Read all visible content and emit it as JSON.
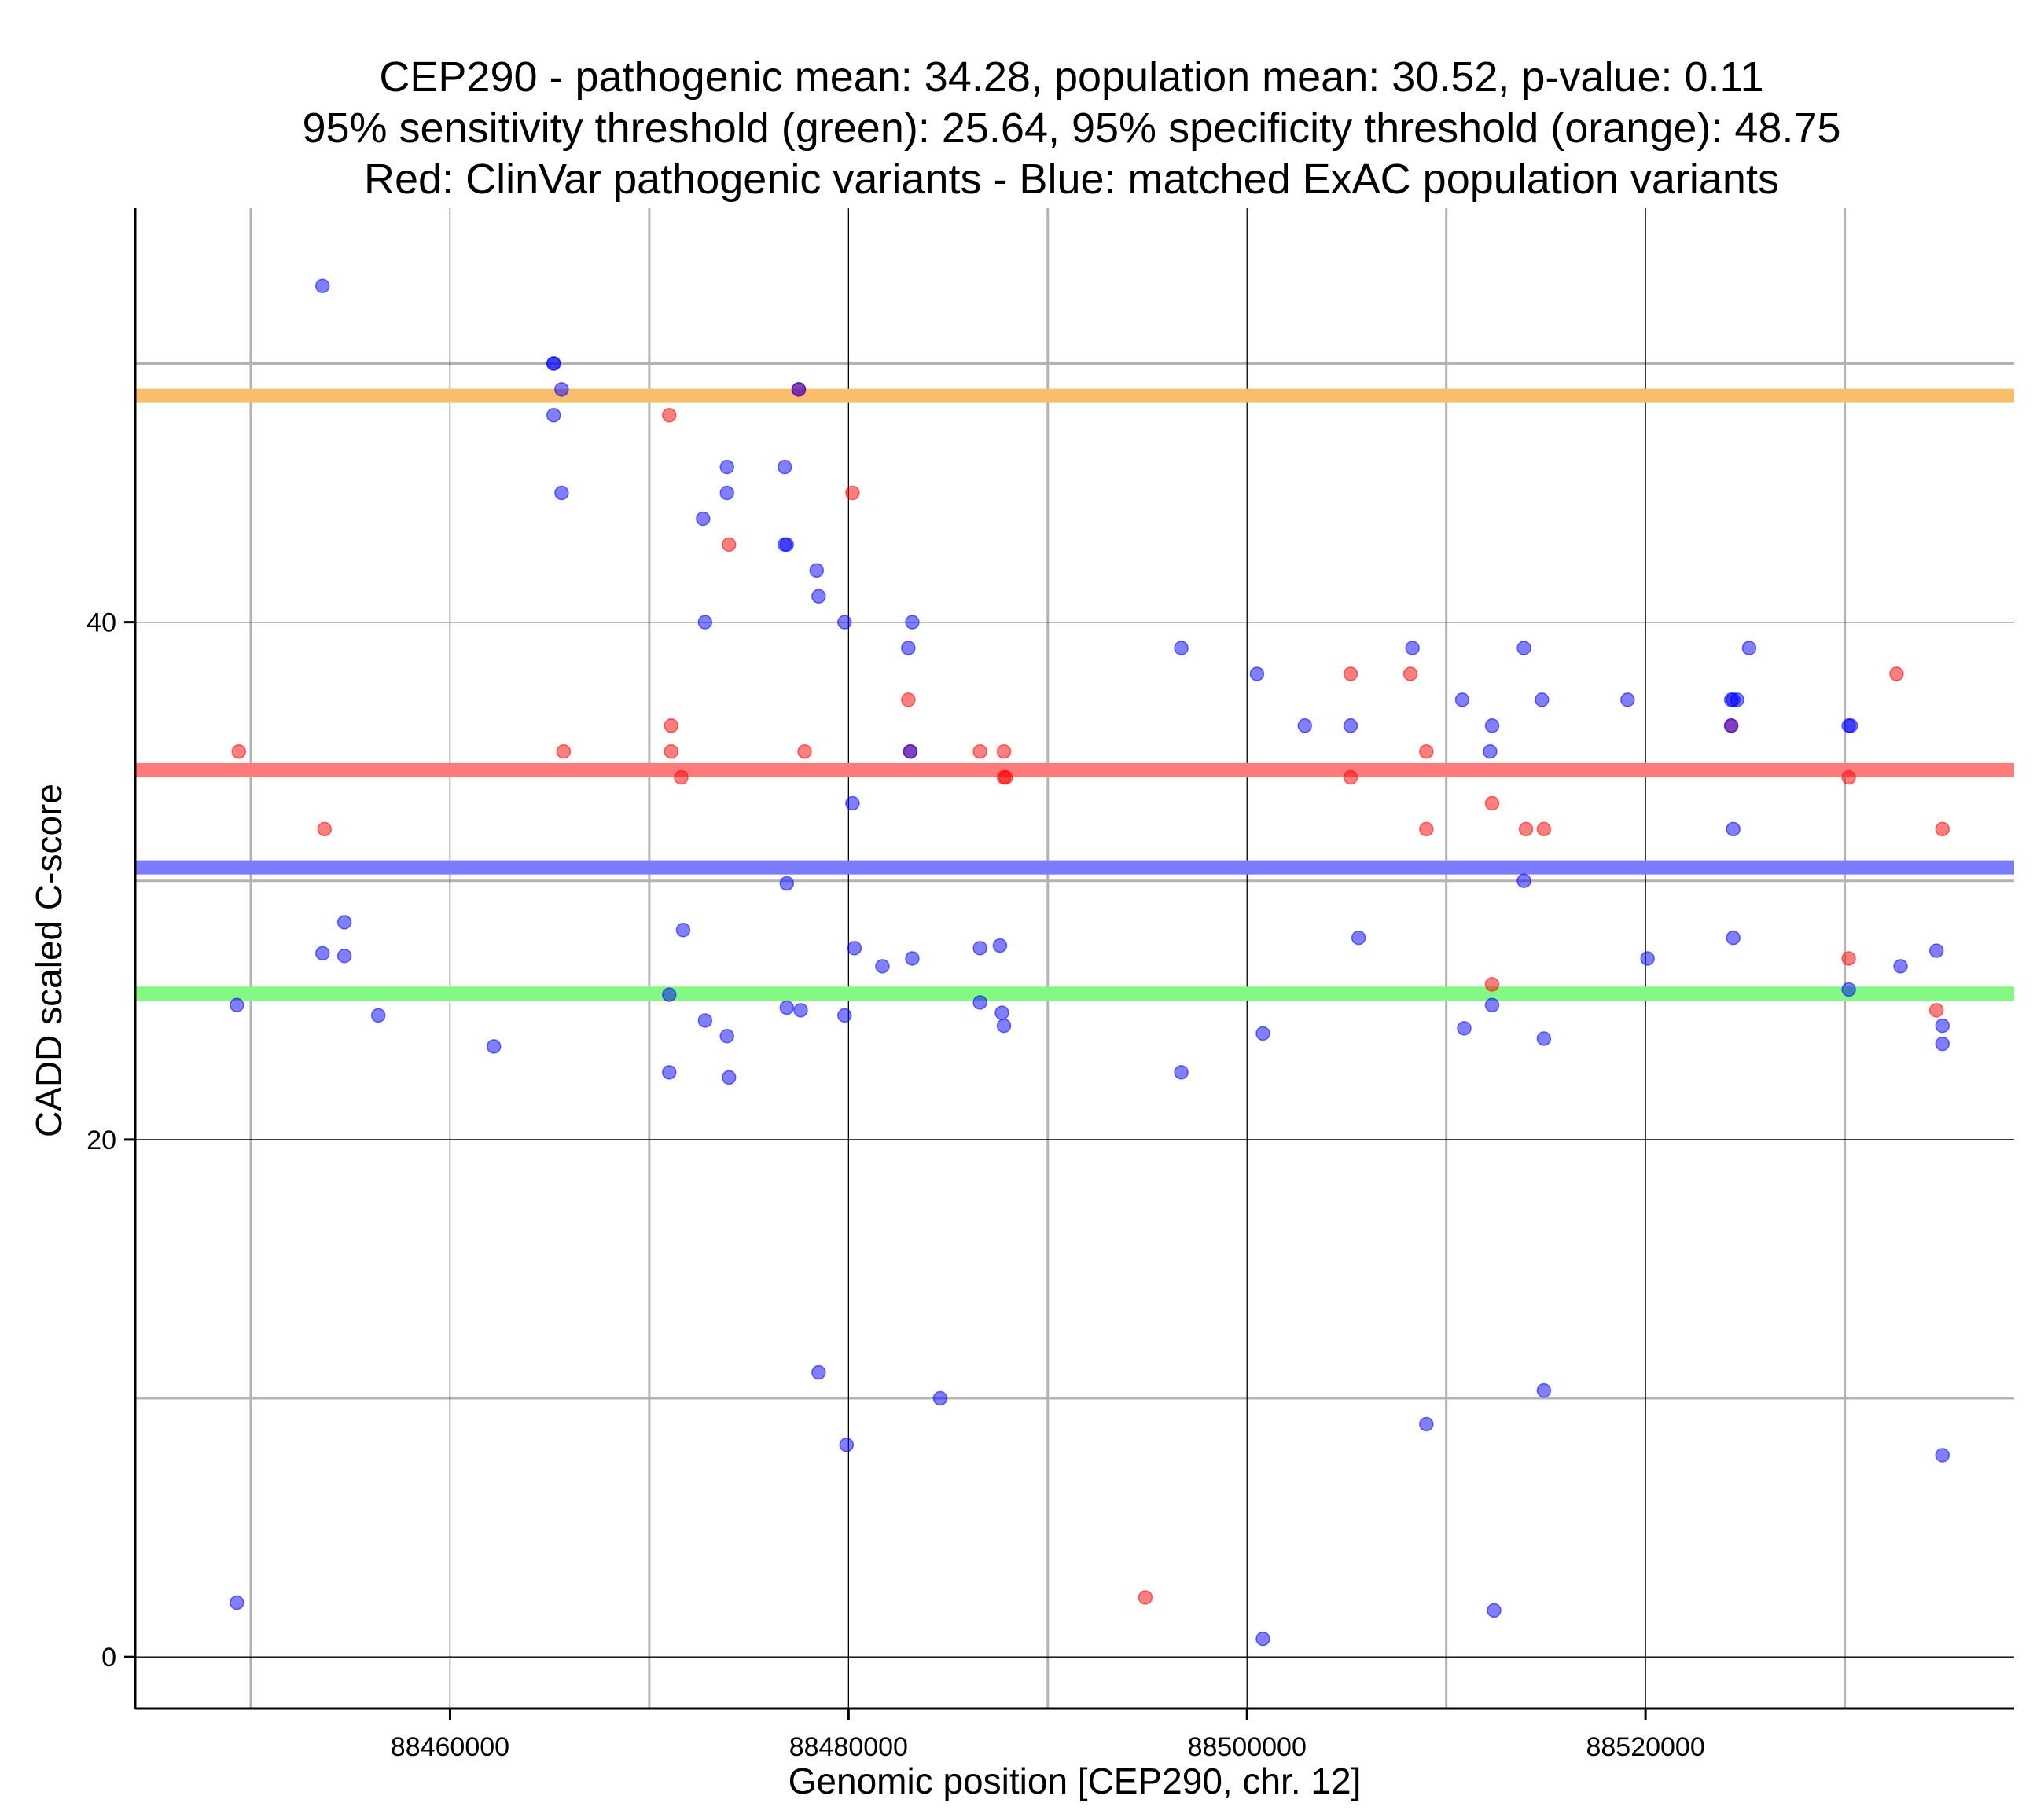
{
  "chart_data": {
    "type": "scatter",
    "title_lines": [
      "CEP290 - pathogenic mean: 34.28, population mean: 30.52, p-value: 0.11",
      "95% sensitivity threshold (green): 25.64, 95% specificity threshold (orange): 48.75",
      "Red: ClinVar pathogenic variants - Blue: matched ExAC population variants"
    ],
    "xlabel": "Genomic position [CEP290, chr. 12]",
    "ylabel": "CADD scaled C-score",
    "xlim": [
      88444200,
      88538500
    ],
    "ylim": [
      -2,
      56
    ],
    "xticks": [
      88460000,
      88480000,
      88500000,
      88520000
    ],
    "xtick_labels": [
      "88460000",
      "88480000",
      "88500000",
      "88520000"
    ],
    "xminor": [
      88450000,
      88470000,
      88490000,
      88510000,
      88530000
    ],
    "yticks": [
      0,
      20,
      40
    ],
    "ytick_labels": [
      "0",
      "20",
      "40"
    ],
    "yminor": [
      10,
      30,
      50
    ],
    "hlines": [
      {
        "name": "specificity-threshold",
        "value": 48.75,
        "color": "#f9bd6c"
      },
      {
        "name": "pathogenic-mean",
        "value": 34.28,
        "color": "#ff7b7b"
      },
      {
        "name": "population-mean",
        "value": 30.52,
        "color": "#7b7bff"
      },
      {
        "name": "sensitivity-threshold",
        "value": 25.64,
        "color": "#83f883"
      }
    ],
    "series": [
      {
        "name": "ClinVar pathogenic variants",
        "color": "#ff0000",
        "points": [
          [
            88449400,
            35
          ],
          [
            88453700,
            32
          ],
          [
            88465700,
            35
          ],
          [
            88471000,
            48
          ],
          [
            88471100,
            36
          ],
          [
            88471100,
            35
          ],
          [
            88471600,
            34
          ],
          [
            88474000,
            43
          ],
          [
            88477500,
            49
          ],
          [
            88477800,
            35
          ],
          [
            88480200,
            45
          ],
          [
            88483000,
            37
          ],
          [
            88483100,
            35
          ],
          [
            88486600,
            35
          ],
          [
            88487800,
            35
          ],
          [
            88487800,
            34
          ],
          [
            88487900,
            34
          ],
          [
            88494900,
            2.3
          ],
          [
            88505200,
            38
          ],
          [
            88505200,
            34
          ],
          [
            88508200,
            38
          ],
          [
            88509000,
            35
          ],
          [
            88509000,
            32
          ],
          [
            88512300,
            33
          ],
          [
            88512300,
            26
          ],
          [
            88514000,
            32
          ],
          [
            88514900,
            32
          ],
          [
            88524300,
            36
          ],
          [
            88530200,
            34
          ],
          [
            88530200,
            27
          ],
          [
            88532600,
            38
          ],
          [
            88534600,
            25
          ],
          [
            88534900,
            32
          ]
        ]
      },
      {
        "name": "matched ExAC population variants",
        "color": "#0000ff",
        "points": [
          [
            88449300,
            25.2
          ],
          [
            88449300,
            2.1
          ],
          [
            88453600,
            53
          ],
          [
            88453600,
            27.2
          ],
          [
            88454700,
            28.4
          ],
          [
            88454700,
            27.1
          ],
          [
            88456400,
            24.8
          ],
          [
            88462200,
            23.6
          ],
          [
            88465200,
            50
          ],
          [
            88465200,
            50
          ],
          [
            88465200,
            48
          ],
          [
            88465600,
            49
          ],
          [
            88465600,
            45
          ],
          [
            88471000,
            25.6
          ],
          [
            88471000,
            22.6
          ],
          [
            88471700,
            28.1
          ],
          [
            88472700,
            44
          ],
          [
            88472800,
            40
          ],
          [
            88472800,
            24.6
          ],
          [
            88473900,
            46
          ],
          [
            88473900,
            45
          ],
          [
            88473900,
            24
          ],
          [
            88474000,
            22.4
          ],
          [
            88476800,
            46
          ],
          [
            88476800,
            43
          ],
          [
            88476900,
            43
          ],
          [
            88476900,
            29.9
          ],
          [
            88476900,
            25.1
          ],
          [
            88477500,
            49
          ],
          [
            88477600,
            25
          ],
          [
            88478400,
            42
          ],
          [
            88478500,
            41
          ],
          [
            88478500,
            11
          ],
          [
            88479800,
            40
          ],
          [
            88479800,
            24.8
          ],
          [
            88479900,
            8.2
          ],
          [
            88480200,
            33
          ],
          [
            88480300,
            27.4
          ],
          [
            88481700,
            26.7
          ],
          [
            88483000,
            39
          ],
          [
            88483100,
            35
          ],
          [
            88483200,
            40
          ],
          [
            88483200,
            27
          ],
          [
            88484600,
            10
          ],
          [
            88486600,
            25.3
          ],
          [
            88486600,
            27.4
          ],
          [
            88487600,
            27.5
          ],
          [
            88487700,
            24.9
          ],
          [
            88487800,
            24.4
          ],
          [
            88496700,
            39
          ],
          [
            88496700,
            22.6
          ],
          [
            88500500,
            38
          ],
          [
            88500800,
            24.1
          ],
          [
            88500800,
            0.7
          ],
          [
            88502900,
            36
          ],
          [
            88505200,
            36
          ],
          [
            88505600,
            27.8
          ],
          [
            88508300,
            39
          ],
          [
            88509000,
            9
          ],
          [
            88510800,
            37
          ],
          [
            88510900,
            24.3
          ],
          [
            88512200,
            35
          ],
          [
            88512300,
            36
          ],
          [
            88512300,
            25.2
          ],
          [
            88512400,
            1.8
          ],
          [
            88513900,
            39
          ],
          [
            88513900,
            30
          ],
          [
            88514800,
            37
          ],
          [
            88514900,
            23.9
          ],
          [
            88514900,
            10.3
          ],
          [
            88519100,
            37
          ],
          [
            88520100,
            27
          ],
          [
            88524300,
            37
          ],
          [
            88524400,
            37
          ],
          [
            88524400,
            32
          ],
          [
            88524400,
            27.8
          ],
          [
            88524600,
            37
          ],
          [
            88525200,
            39
          ],
          [
            88530200,
            36
          ],
          [
            88530300,
            36
          ],
          [
            88530200,
            25.8
          ],
          [
            88532800,
            26.7
          ],
          [
            88534600,
            27.3
          ],
          [
            88534900,
            24.4
          ],
          [
            88534900,
            23.7
          ],
          [
            88534900,
            7.8
          ],
          [
            88524300,
            36
          ]
        ]
      }
    ]
  }
}
